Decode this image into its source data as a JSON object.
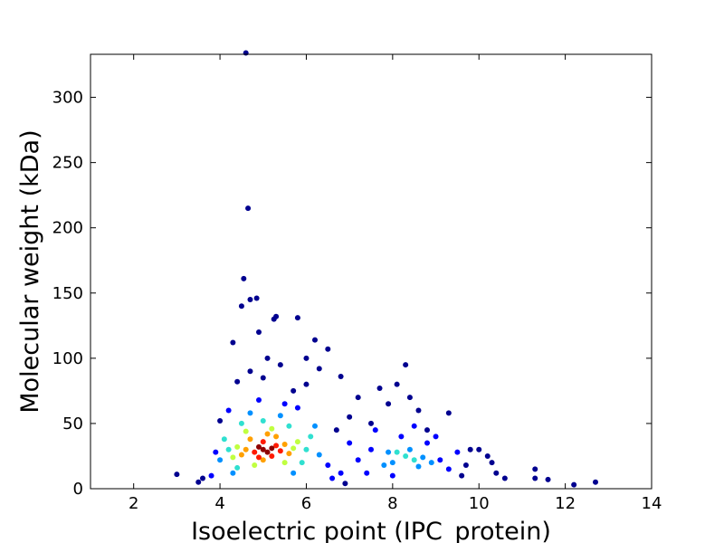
{
  "chart_data": {
    "type": "scatter",
    "x_label": "Isoelectric point (IPC_protein)",
    "y_label": "Molecular weight (kDa)",
    "xlim": [
      1,
      14
    ],
    "xticks": [
      2,
      4,
      6,
      8,
      10,
      12,
      14
    ],
    "ylim": [
      0,
      333
    ],
    "yticks": [
      0,
      50,
      100,
      150,
      200,
      250,
      300
    ],
    "grid": false,
    "series": [
      {
        "color": "#00008f",
        "x": [
          3.0,
          3.5,
          3.6,
          4.6,
          4.65,
          4.55,
          4.7,
          4.85,
          5.25,
          5.3,
          4.5,
          5.8,
          6.2,
          6.5,
          4.3,
          5.1,
          5.4,
          4.7,
          5.0,
          6.0,
          6.8,
          7.2,
          7.7,
          8.3,
          8.1,
          8.6,
          9.3,
          9.8,
          10.0,
          10.2,
          10.3,
          10.4,
          10.6,
          11.3,
          11.3,
          11.6,
          12.2,
          12.7,
          9.6,
          7.0,
          6.9,
          7.5,
          6.3,
          5.7,
          4.4,
          4.9,
          6.0,
          7.9,
          8.8,
          9.7,
          4.0,
          6.7,
          8.4
        ],
        "values": [
          11,
          5,
          8,
          334,
          215,
          161,
          145,
          146,
          130,
          132,
          140,
          131,
          114,
          107,
          112,
          100,
          95,
          90,
          85,
          80,
          86,
          70,
          77,
          95,
          80,
          60,
          58,
          30,
          30,
          25,
          20,
          12,
          8,
          15,
          8,
          7,
          3,
          5,
          10,
          55,
          4,
          50,
          92,
          75,
          82,
          120,
          100,
          65,
          45,
          18,
          52,
          45,
          70
        ]
      },
      {
        "color": "#0000ff",
        "x": [
          7.5,
          9.1,
          8.2,
          7.2,
          9.3,
          8.8,
          3.9,
          6.5,
          7.0,
          7.4,
          8.5,
          9.5,
          6.6,
          3.8,
          4.2,
          5.8,
          7.6,
          8.0,
          9.0,
          4.9,
          5.5,
          6.8
        ],
        "values": [
          30,
          22,
          40,
          22,
          15,
          35,
          28,
          18,
          35,
          12,
          48,
          28,
          8,
          10,
          60,
          62,
          45,
          10,
          40,
          68,
          65,
          12
        ]
      },
      {
        "color": "#0090ff",
        "x": [
          8.0,
          8.7,
          8.4,
          8.6,
          7.9,
          4.0,
          6.3,
          4.7,
          5.4,
          4.3,
          5.7,
          6.2,
          8.9,
          7.8
        ],
        "values": [
          20,
          24,
          30,
          17,
          28,
          22,
          26,
          58,
          56,
          12,
          12,
          48,
          20,
          18
        ]
      },
      {
        "color": "#30e0d0",
        "x": [
          4.2,
          6.0,
          4.5,
          5.6,
          4.4,
          5.9,
          5.0,
          4.1,
          6.1,
          8.3,
          8.5,
          8.1
        ],
        "values": [
          30,
          30,
          50,
          48,
          16,
          20,
          52,
          38,
          40,
          25,
          22,
          28
        ]
      },
      {
        "color": "#c0ff40",
        "x": [
          4.4,
          5.7,
          4.6,
          5.5,
          4.8,
          5.8,
          4.3,
          5.2
        ],
        "values": [
          32,
          31,
          44,
          20,
          18,
          36,
          24,
          46
        ]
      },
      {
        "color": "#ffa000",
        "x": [
          4.6,
          5.5,
          4.7,
          5.3,
          5.0,
          5.6,
          4.5,
          5.1
        ],
        "values": [
          30,
          34,
          38,
          40,
          22,
          27,
          26,
          42
        ]
      },
      {
        "color": "#ff1a00",
        "x": [
          4.8,
          5.3,
          5.0,
          5.2,
          4.9,
          5.4
        ],
        "values": [
          28,
          33,
          36,
          25,
          24,
          29
        ]
      },
      {
        "color": "#8f0000",
        "x": [
          5.0,
          5.1,
          4.9,
          5.2
        ],
        "values": [
          30,
          28,
          32,
          31
        ]
      }
    ]
  }
}
